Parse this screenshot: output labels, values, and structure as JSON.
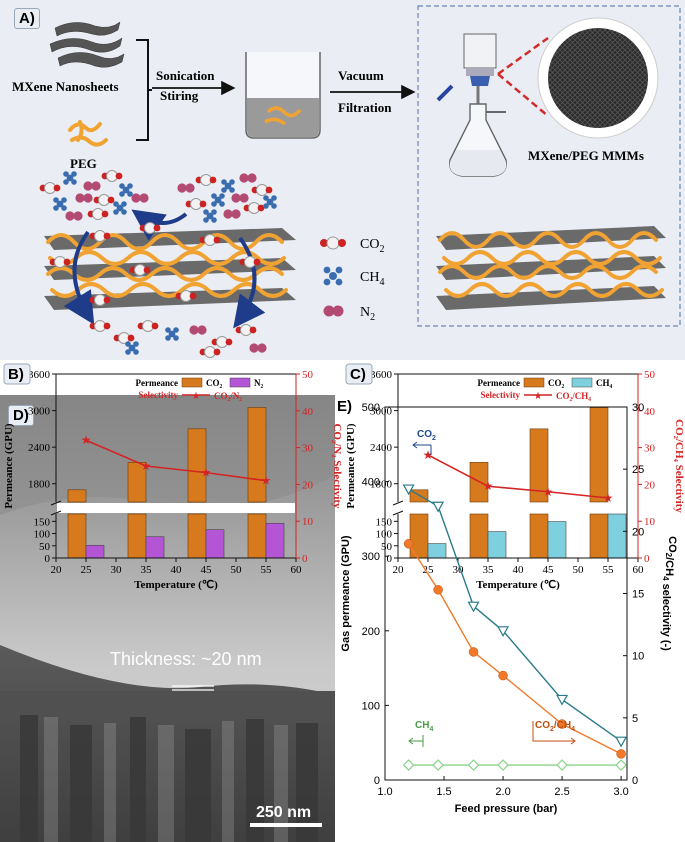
{
  "panel_a": {
    "label": "A)",
    "mxene": "MXene  Nanosheets",
    "peg": "PEG",
    "step1_a": "Sonication",
    "step1_b": "Stiring",
    "step2_a": "Vacuum",
    "step2_b": "Filtration",
    "membrane": "MXene/PEG MMMs",
    "legend_co2": "CO",
    "legend_co2_sub": "2",
    "legend_ch4": "CH",
    "legend_ch4_sub": "4",
    "legend_n2": "N",
    "legend_n2_sub": "2",
    "colors": {
      "background": "#eaeef4",
      "peg": "#f0a332",
      "sheet": "#5a5a5a",
      "arrow": "#1f3c8a",
      "zoom": "#d42a2a"
    }
  },
  "panel_d": {
    "label": "D)",
    "thickness": "Thickness: ~20 nm",
    "scalebar": "250 nm"
  },
  "chart_data": [
    {
      "id": "B",
      "label": "B)",
      "type": "bar",
      "x": [
        25,
        35,
        45,
        55
      ],
      "series": [
        {
          "name": "CO2",
          "values": [
            1700,
            2150,
            2700,
            3050
          ],
          "color": "#d77a1e"
        },
        {
          "name": "N2",
          "values": [
            52,
            87,
            116,
            142
          ],
          "color": "#b455d6"
        },
        {
          "name": "CO2/N2",
          "axis": "right",
          "values": [
            32,
            25,
            23.2,
            21
          ],
          "color": "#d42424"
        }
      ],
      "legend": {
        "permeance": "Permeance",
        "selectivity": "Selectivity",
        "s1": "CO₂",
        "s2": "N₂",
        "s3": "CO₂/N₂"
      },
      "xlabel": "Temperature (℃)",
      "ylabel": "Permeance (GPU)",
      "y2label": "CO₂/N₂ Selectivity",
      "xlim": [
        20,
        60
      ],
      "xticks": [
        "20",
        "25",
        "30",
        "35",
        "40",
        "45",
        "50",
        "55",
        "60"
      ],
      "y_lower_ticks": [
        "0",
        "50",
        "100",
        "150"
      ],
      "y_upper_ticks": [
        "1800",
        "2400",
        "3000",
        "3600"
      ],
      "y2ticks": [
        "0",
        "10",
        "20",
        "30",
        "40",
        "50"
      ],
      "ylim_lower": [
        0,
        180
      ],
      "ylim_upper": [
        1500,
        3600
      ],
      "y2lim": [
        0,
        50
      ],
      "broken_axis": true
    },
    {
      "id": "C",
      "label": "C)",
      "type": "bar",
      "x": [
        25,
        35,
        45,
        55
      ],
      "series": [
        {
          "name": "CO2",
          "values": [
            1700,
            2150,
            2700,
            3050
          ],
          "color": "#d77a1e"
        },
        {
          "name": "CH4",
          "values": [
            59,
            108,
            149,
            185
          ],
          "color": "#7fd0df"
        },
        {
          "name": "CO2/CH4",
          "axis": "right",
          "values": [
            28,
            19.5,
            18,
            16.3
          ],
          "color": "#d42424"
        }
      ],
      "legend": {
        "permeance": "Permeance",
        "selectivity": "Selectivity",
        "s1": "CO₂",
        "s2": "CH₄",
        "s3": "CO₂/CH₄"
      },
      "xlabel": "Temperature (℃)",
      "ylabel": "Permeance (GPU)",
      "y2label": "CO₂/CH₄ Selectivity",
      "xlim": [
        20,
        60
      ],
      "xticks": [
        "20",
        "25",
        "30",
        "35",
        "40",
        "45",
        "50",
        "55",
        "60"
      ],
      "y_lower_ticks": [
        "0",
        "50",
        "100",
        "150"
      ],
      "y_upper_ticks": [
        "1800",
        "2400",
        "3000",
        "3600"
      ],
      "y2ticks": [
        "0",
        "10",
        "20",
        "30",
        "40",
        "50"
      ],
      "ylim_lower": [
        0,
        180
      ],
      "ylim_upper": [
        1500,
        3600
      ],
      "y2lim": [
        0,
        50
      ],
      "broken_axis": true
    },
    {
      "id": "E",
      "label": "E)",
      "type": "line",
      "x": [
        1.2,
        1.45,
        1.75,
        2.0,
        2.5,
        3.0
      ],
      "series": [
        {
          "name": "CO2",
          "values": [
            390,
            367,
            233,
            200,
            108,
            52
          ],
          "color": "#2a7a8a",
          "marker": "triangle-down"
        },
        {
          "name": "CO2/CH4",
          "axis": "right",
          "values": [
            19,
            15.3,
            10.3,
            8.4,
            4.5,
            2.1
          ],
          "color": "#f07a2a",
          "marker": "circle"
        },
        {
          "name": "CH4",
          "values": [
            20,
            20,
            20,
            20,
            20,
            20
          ],
          "color": "#8ad28a",
          "marker": "diamond"
        }
      ],
      "annotations": {
        "co2": "CO",
        "co2_sub": "2",
        "ch4": "CH",
        "ch4_sub": "4",
        "sel_a": "CO",
        "sel_a_sub": "2",
        "sel_b": "/CH",
        "sel_b_sub": "4"
      },
      "xlabel": "Feed pressure (bar)",
      "ylabel": "Gas permeance (GPU)",
      "y2label_a": "CO",
      "y2label_sub_a": "2",
      "y2label_b": "/CH",
      "y2label_sub_b": "4",
      "y2label_c": " selectivity (-)",
      "xlim": [
        1.0,
        3.0
      ],
      "xticks": [
        "1.0",
        "1.5",
        "2.0",
        "2.5",
        "3.0"
      ],
      "ylim": [
        0,
        500
      ],
      "yticks": [
        "0",
        "100",
        "200",
        "300",
        "400",
        "500"
      ],
      "y2lim": [
        0,
        30
      ],
      "y2ticks": [
        "0",
        "5",
        "10",
        "15",
        "20",
        "25",
        "30"
      ]
    }
  ]
}
